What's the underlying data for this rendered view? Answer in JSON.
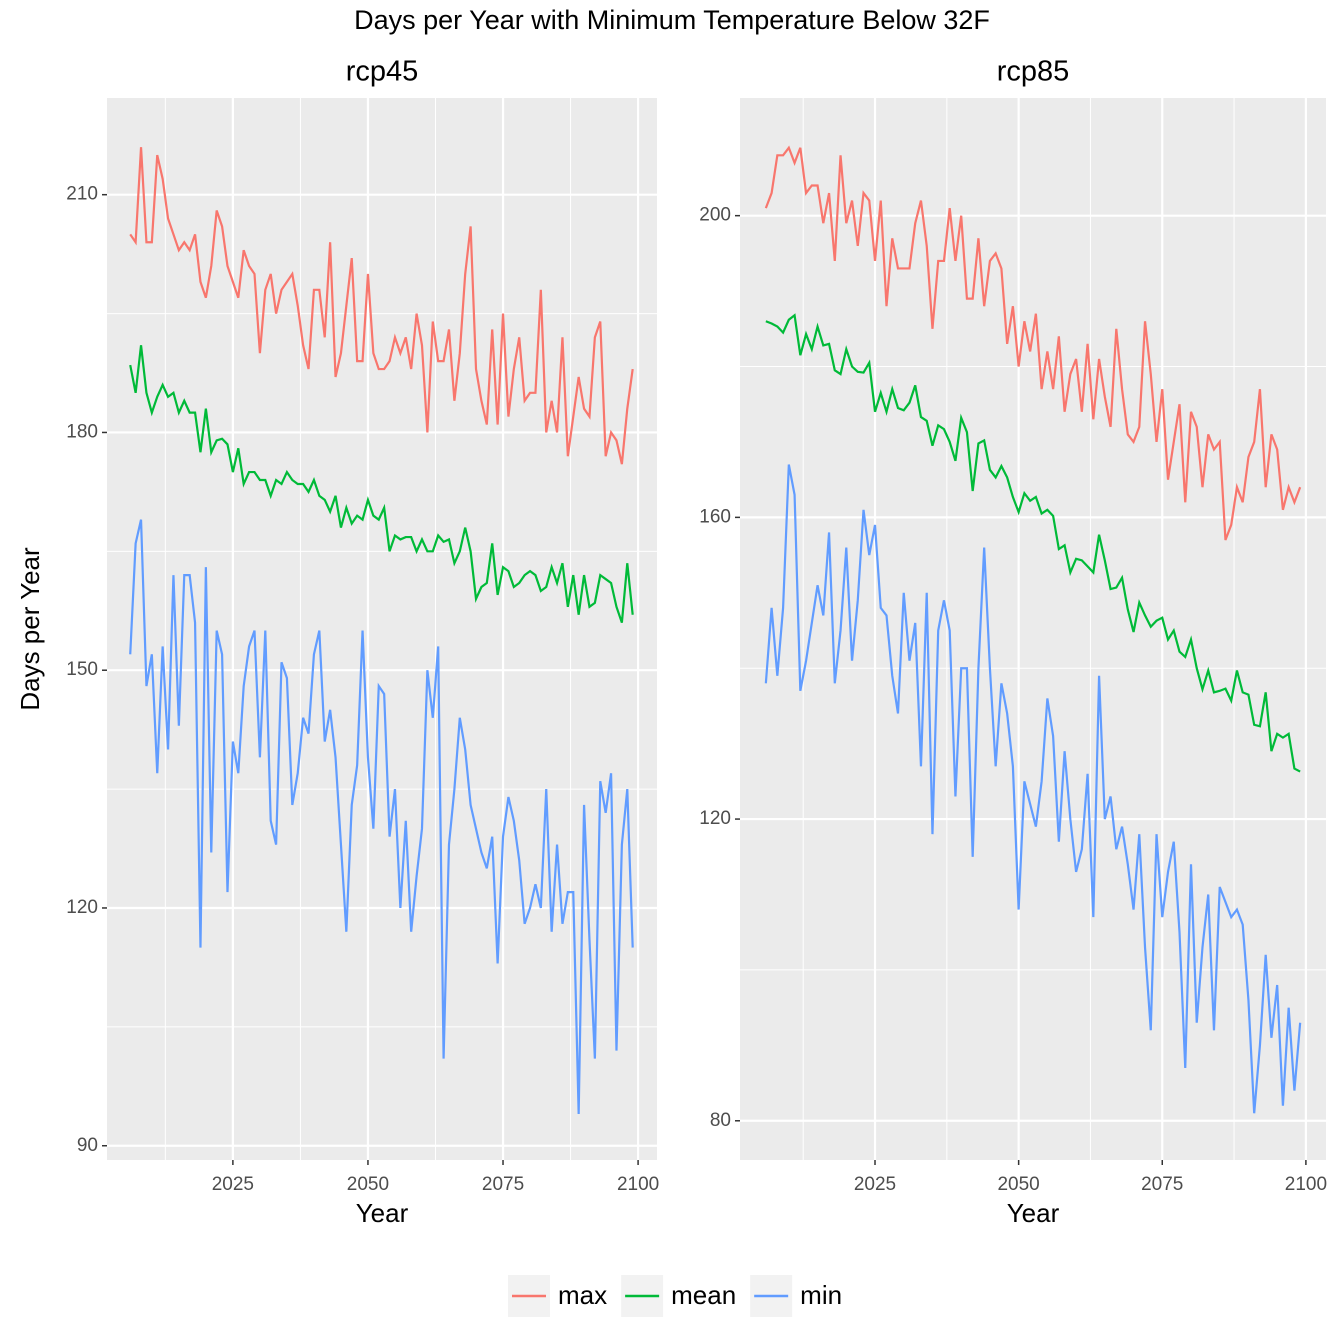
{
  "title": "Days per Year with Minimum Temperature Below 32F",
  "chart_data": [
    {
      "type": "line",
      "title": "rcp45",
      "x_label": "Year",
      "y_label": "Days per Year",
      "x": [
        2006,
        2007,
        2008,
        2009,
        2010,
        2011,
        2012,
        2013,
        2014,
        2015,
        2016,
        2017,
        2018,
        2019,
        2020,
        2021,
        2022,
        2023,
        2024,
        2025,
        2026,
        2027,
        2028,
        2029,
        2030,
        2031,
        2032,
        2033,
        2034,
        2035,
        2036,
        2037,
        2038,
        2039,
        2040,
        2041,
        2042,
        2043,
        2044,
        2045,
        2046,
        2047,
        2048,
        2049,
        2050,
        2051,
        2052,
        2053,
        2054,
        2055,
        2056,
        2057,
        2058,
        2059,
        2060,
        2061,
        2062,
        2063,
        2064,
        2065,
        2066,
        2067,
        2068,
        2069,
        2070,
        2071,
        2072,
        2073,
        2074,
        2075,
        2076,
        2077,
        2078,
        2079,
        2080,
        2081,
        2082,
        2083,
        2084,
        2085,
        2086,
        2087,
        2088,
        2089,
        2090,
        2091,
        2092,
        2093,
        2094,
        2095,
        2096,
        2097,
        2098,
        2099
      ],
      "xlim": [
        2001.7,
        2103.5
      ],
      "xticks": [
        2025,
        2050,
        2075,
        2100
      ],
      "ylim": [
        88.2,
        222.2
      ],
      "yticks": [
        90,
        120,
        150,
        180,
        210
      ],
      "grid": true,
      "series": [
        {
          "name": "max",
          "color": "#F8766D",
          "values": [
            205,
            204,
            216,
            204,
            204,
            215,
            212,
            207,
            205,
            203,
            204,
            203,
            205,
            199,
            197,
            201,
            208,
            206,
            201,
            199,
            197,
            203,
            201,
            200,
            190,
            198,
            200,
            195,
            198,
            199,
            200,
            196,
            191,
            188,
            198,
            198,
            192,
            204,
            187,
            190,
            196,
            202,
            189,
            189,
            200,
            190,
            188,
            188,
            189,
            192,
            190,
            192,
            188,
            195,
            191,
            180,
            194,
            189,
            189,
            193,
            184,
            190,
            200,
            206,
            188,
            184,
            181,
            193,
            181,
            195,
            182,
            188,
            192,
            184,
            185,
            185,
            198,
            180,
            184,
            180,
            192,
            177,
            182,
            187,
            183,
            182,
            192,
            194,
            177,
            180,
            179,
            176,
            183,
            188
          ]
        },
        {
          "name": "mean",
          "color": "#00BA38",
          "values": [
            188.5,
            185,
            191,
            185,
            182.5,
            184.5,
            186,
            184.5,
            185,
            182.5,
            184,
            182.5,
            182.5,
            177.5,
            183,
            177.5,
            179,
            179.2,
            178.5,
            175,
            178,
            173.5,
            175,
            175,
            174,
            174,
            172,
            174,
            173.5,
            175,
            174,
            173.5,
            173.5,
            172.5,
            174,
            172,
            171.5,
            170,
            172,
            168,
            170.5,
            168.5,
            169.5,
            169,
            171.5,
            169.5,
            169,
            170.5,
            165,
            167,
            166.5,
            166.8,
            166.8,
            165,
            166.5,
            165,
            165,
            167,
            166.2,
            166.5,
            163.5,
            165,
            168,
            165,
            159,
            160.5,
            161,
            166,
            159.5,
            163,
            162.5,
            160.5,
            161,
            162,
            162.5,
            162,
            160,
            160.5,
            163,
            161,
            163.5,
            158,
            162,
            157,
            162,
            158,
            158.5,
            162,
            161.5,
            161,
            158,
            156,
            163.5,
            157
          ]
        },
        {
          "name": "min",
          "color": "#619CFF",
          "values": [
            152,
            166,
            169,
            148,
            152,
            137,
            153,
            140,
            162,
            143,
            162,
            162,
            156,
            115,
            163,
            127,
            155,
            152,
            122,
            141,
            137,
            148,
            153,
            155,
            139,
            155,
            131,
            128,
            151,
            149,
            133,
            137,
            144,
            142,
            152,
            155,
            141,
            145,
            139,
            128,
            117,
            133,
            138,
            155,
            139,
            130,
            148,
            147,
            129,
            135,
            120,
            131,
            117,
            124,
            130,
            150,
            144,
            153,
            101,
            128,
            135,
            144,
            140,
            133,
            130,
            127,
            125,
            129,
            113,
            129,
            134,
            131,
            126,
            118,
            120,
            123,
            120,
            135,
            117,
            128,
            118,
            122,
            122,
            94,
            133,
            116,
            101,
            136,
            132,
            137,
            102,
            128,
            135,
            115
          ]
        }
      ]
    },
    {
      "type": "line",
      "title": "rcp85",
      "x_label": "Year",
      "x": [
        2006,
        2007,
        2008,
        2009,
        2010,
        2011,
        2012,
        2013,
        2014,
        2015,
        2016,
        2017,
        2018,
        2019,
        2020,
        2021,
        2022,
        2023,
        2024,
        2025,
        2026,
        2027,
        2028,
        2029,
        2030,
        2031,
        2032,
        2033,
        2034,
        2035,
        2036,
        2037,
        2038,
        2039,
        2040,
        2041,
        2042,
        2043,
        2044,
        2045,
        2046,
        2047,
        2048,
        2049,
        2050,
        2051,
        2052,
        2053,
        2054,
        2055,
        2056,
        2057,
        2058,
        2059,
        2060,
        2061,
        2062,
        2063,
        2064,
        2065,
        2066,
        2067,
        2068,
        2069,
        2070,
        2071,
        2072,
        2073,
        2074,
        2075,
        2076,
        2077,
        2078,
        2079,
        2080,
        2081,
        2082,
        2083,
        2084,
        2085,
        2086,
        2087,
        2088,
        2089,
        2090,
        2091,
        2092,
        2093,
        2094,
        2095,
        2096,
        2097,
        2098,
        2099
      ],
      "xlim": [
        2001.5,
        2103.5
      ],
      "xticks": [
        2025,
        2050,
        2075,
        2100
      ],
      "ylim": [
        74.8,
        215.6
      ],
      "yticks": [
        80,
        120,
        160,
        200
      ],
      "grid": true,
      "series": [
        {
          "name": "max",
          "color": "#F8766D",
          "values": [
            201,
            203,
            208,
            208,
            209,
            207,
            209,
            203,
            204,
            204,
            199,
            203,
            194,
            208,
            199,
            202,
            196,
            203,
            202,
            194,
            202,
            188,
            197,
            193,
            193,
            193,
            199,
            202,
            196,
            185,
            194,
            194,
            201,
            194,
            200,
            189,
            189,
            197,
            188,
            194,
            195,
            193,
            183,
            188,
            180,
            186,
            182,
            187,
            177,
            182,
            177,
            184,
            174,
            179,
            181,
            174,
            183,
            173,
            181,
            176,
            172,
            185,
            177,
            171,
            170,
            172,
            186,
            179,
            170,
            177,
            165,
            170,
            175,
            162,
            174,
            172,
            164,
            171,
            169,
            170,
            157,
            159,
            164,
            162,
            168,
            170,
            177,
            164,
            171,
            169,
            161,
            164,
            162,
            164
          ]
        },
        {
          "name": "mean",
          "color": "#00BA38",
          "values": [
            186,
            185.7,
            185.3,
            184.5,
            186.2,
            186.8,
            181.5,
            184.3,
            182.3,
            185.3,
            182.8,
            183,
            179.5,
            179,
            182.3,
            180,
            179.3,
            179.2,
            180.5,
            174,
            176.5,
            174,
            177,
            174.5,
            174.2,
            175.2,
            177.5,
            173.3,
            172.8,
            169.5,
            172.2,
            171.7,
            170,
            167.5,
            173.2,
            171.3,
            163.5,
            169.8,
            170.2,
            166.3,
            165.3,
            166.8,
            165.3,
            162.7,
            160.7,
            163.2,
            162.2,
            162.7,
            160.5,
            161,
            160.2,
            155.8,
            156.3,
            152.7,
            154.5,
            154.3,
            153.5,
            152.7,
            157.7,
            154.3,
            150.5,
            150.7,
            152,
            147.8,
            144.8,
            148.7,
            147,
            145.5,
            146.3,
            146.7,
            143.8,
            145,
            142.2,
            141.5,
            143.8,
            140,
            137.2,
            139.7,
            136.8,
            137,
            137.3,
            135.7,
            139.7,
            136.8,
            136.5,
            132.5,
            132.3,
            136.8,
            129,
            131.3,
            130.8,
            131.3,
            126.7,
            126.3
          ]
        },
        {
          "name": "min",
          "color": "#619CFF",
          "values": [
            138,
            148,
            139,
            148,
            167,
            163,
            137,
            141,
            146,
            151,
            147,
            158,
            138,
            145,
            156,
            141,
            149,
            161,
            155,
            159,
            148,
            147,
            139,
            134,
            150,
            141,
            146,
            127,
            150,
            118,
            145,
            149,
            145,
            123,
            140,
            140,
            115,
            140,
            156,
            140,
            127,
            138,
            134,
            127,
            108,
            125,
            122,
            119,
            125,
            136,
            131,
            117,
            129,
            120,
            113,
            116,
            126,
            107,
            139,
            120,
            123,
            116,
            119,
            114,
            108,
            118,
            103,
            92,
            118,
            107,
            113,
            117,
            105,
            87,
            114,
            93,
            103,
            110,
            92,
            111,
            109,
            107,
            108,
            106,
            96,
            81,
            90,
            102,
            91,
            98,
            82,
            95,
            84,
            93
          ]
        }
      ]
    }
  ]
}
